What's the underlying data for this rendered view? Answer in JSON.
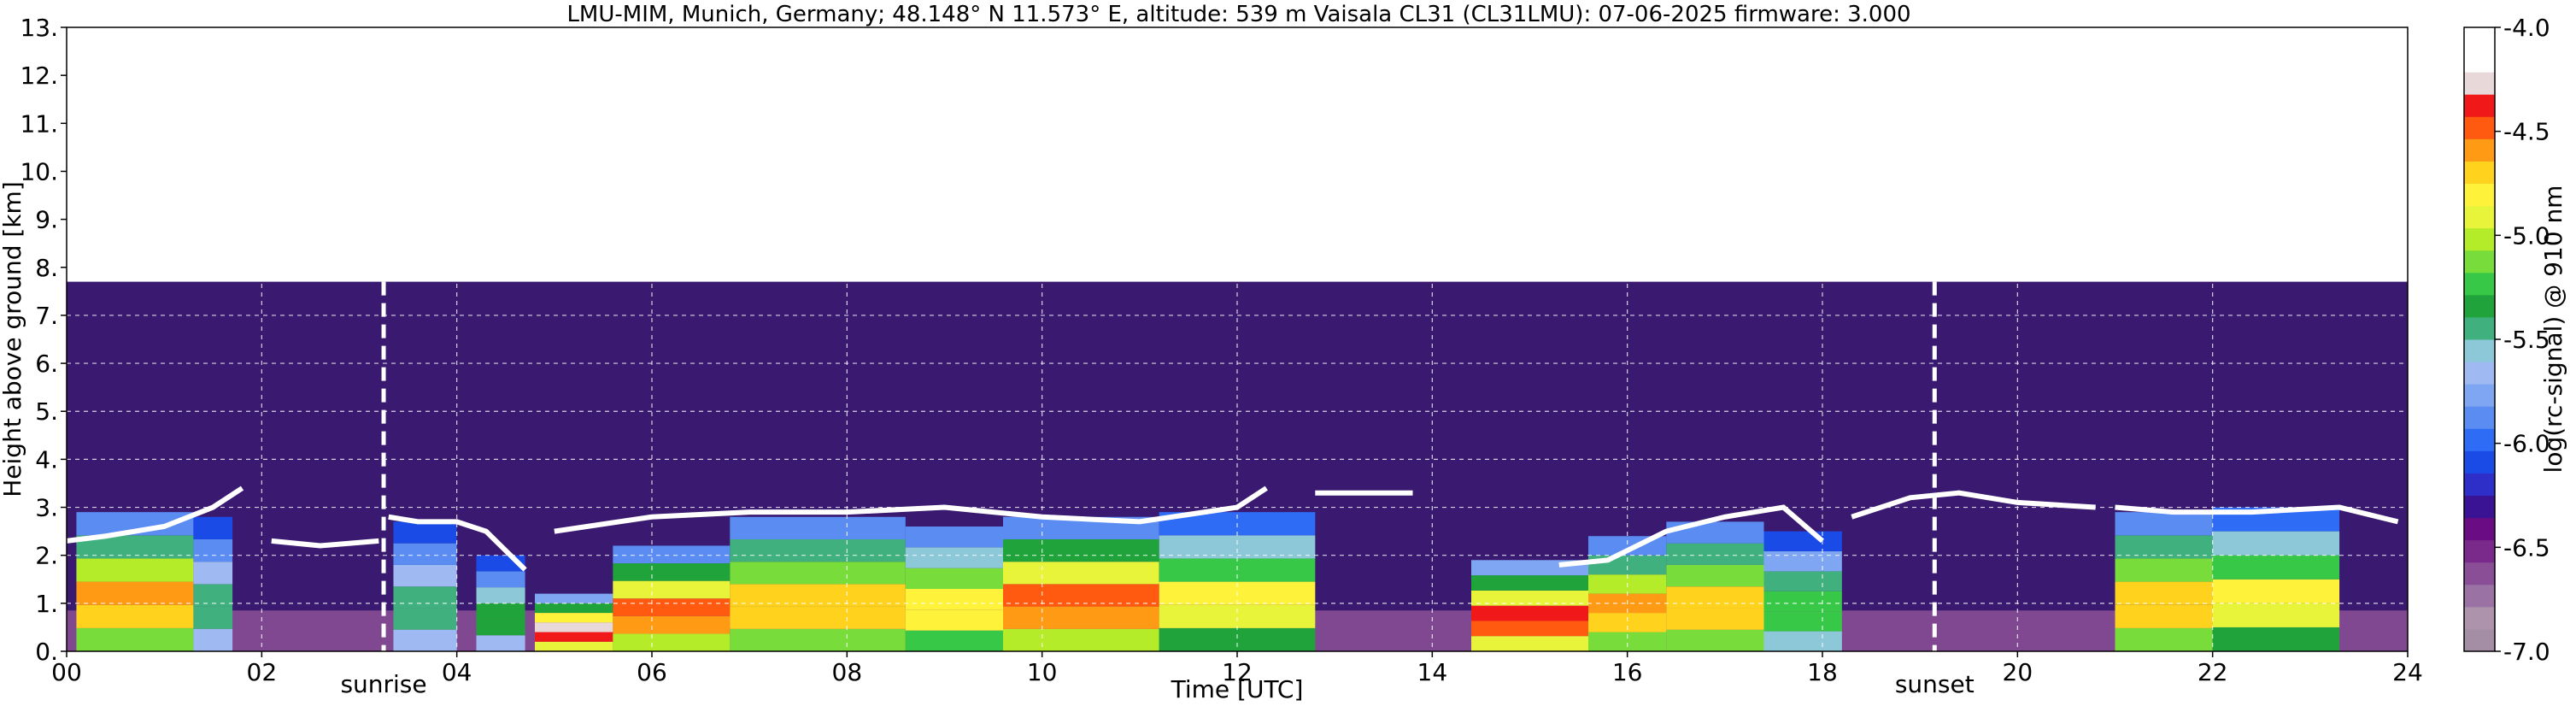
{
  "chart_data": {
    "type": "heatmap",
    "title": "LMU-MIM, Munich, Germany; 48.148° N 11.573° E, altitude: 539 m    Vaisala CL31 (CL31LMU): 07-06-2025    firmware: 3.000",
    "xlabel": "Time [UTC]",
    "ylabel": "Height above ground [km]",
    "xlim": [
      0,
      24
    ],
    "ylim": [
      0,
      13
    ],
    "x_ticks": [
      {
        "value": 0,
        "label": "00"
      },
      {
        "value": 2,
        "label": "02"
      },
      {
        "value": 4,
        "label": "04"
      },
      {
        "value": 6,
        "label": "06"
      },
      {
        "value": 8,
        "label": "08"
      },
      {
        "value": 10,
        "label": "10"
      },
      {
        "value": 12,
        "label": "12"
      },
      {
        "value": 14,
        "label": "14"
      },
      {
        "value": 16,
        "label": "16"
      },
      {
        "value": 18,
        "label": "18"
      },
      {
        "value": 20,
        "label": "20"
      },
      {
        "value": 22,
        "label": "22"
      },
      {
        "value": 24,
        "label": "24"
      }
    ],
    "y_ticks": [
      {
        "value": 0,
        "label": "0."
      },
      {
        "value": 1,
        "label": "1."
      },
      {
        "value": 2,
        "label": "2."
      },
      {
        "value": 3,
        "label": "3."
      },
      {
        "value": 4,
        "label": "4."
      },
      {
        "value": 5,
        "label": "5."
      },
      {
        "value": 6,
        "label": "6."
      },
      {
        "value": 7,
        "label": "7."
      },
      {
        "value": 8,
        "label": "8."
      },
      {
        "value": 9,
        "label": "9."
      },
      {
        "value": 10,
        "label": "10."
      },
      {
        "value": 11,
        "label": "11."
      },
      {
        "value": 12,
        "label": "12."
      },
      {
        "value": 13,
        "label": "13."
      }
    ],
    "grid": true,
    "data_top_height_km": 7.7,
    "sun_events": [
      {
        "label": "sunrise",
        "time": 3.25
      },
      {
        "label": "sunset",
        "time": 19.15
      }
    ],
    "colorbar": {
      "label": "log(rc-signal) @ 910 nm",
      "range": [
        -7.0,
        -4.0
      ],
      "ticks": [
        {
          "value": -4.0,
          "label": "-4.0"
        },
        {
          "value": -4.5,
          "label": "-4.5"
        },
        {
          "value": -5.0,
          "label": "-5.0"
        },
        {
          "value": -5.5,
          "label": "-5.5"
        },
        {
          "value": -6.0,
          "label": "-6.0"
        },
        {
          "value": -6.5,
          "label": "-6.5"
        },
        {
          "value": -7.0,
          "label": "-7.0"
        }
      ],
      "colors": [
        "#a38ea5",
        "#ad93ac",
        "#9a72a3",
        "#8a4e96",
        "#7a2a8a",
        "#6a0d84",
        "#3a1294",
        "#2d2fc8",
        "#1a4be6",
        "#2e6cf6",
        "#5a8cf2",
        "#7fa6f2",
        "#9fbaf2",
        "#8cc8d8",
        "#40b07e",
        "#1fa33a",
        "#38c848",
        "#78dc3a",
        "#b4ec2a",
        "#e8f43a",
        "#fff23a",
        "#ffd21e",
        "#ff9a14",
        "#ff5a10",
        "#f01818",
        "#e8d8da",
        "#ffffff",
        "#ffffff"
      ]
    },
    "cloud_base_layers": [
      {
        "t": [
          0.0,
          0.4,
          1.0,
          1.5,
          1.8
        ],
        "h": [
          2.3,
          2.4,
          2.6,
          3.0,
          3.4
        ]
      },
      {
        "t": [
          2.1,
          2.6,
          3.2
        ],
        "h": [
          2.3,
          2.2,
          2.3
        ]
      },
      {
        "t": [
          3.3,
          3.6,
          4.0,
          4.3,
          4.7
        ],
        "h": [
          2.8,
          2.7,
          2.7,
          2.5,
          1.7
        ]
      },
      {
        "t": [
          5.0,
          6.0,
          7.0,
          8.0,
          9.0,
          10.0,
          11.0,
          12.0,
          12.3
        ],
        "h": [
          2.5,
          2.8,
          2.9,
          2.9,
          3.0,
          2.8,
          2.7,
          3.0,
          3.4
        ]
      },
      {
        "t": [
          12.8,
          13.3,
          13.8
        ],
        "h": [
          3.3,
          3.3,
          3.3
        ]
      },
      {
        "t": [
          15.3,
          15.8,
          16.4,
          17.0,
          17.6,
          18.0
        ],
        "h": [
          1.8,
          1.9,
          2.5,
          2.8,
          3.0,
          2.3
        ]
      },
      {
        "t": [
          18.3,
          18.9,
          19.4,
          20.0,
          20.8
        ],
        "h": [
          2.8,
          3.2,
          3.3,
          3.1,
          3.0
        ]
      },
      {
        "t": [
          21.0,
          21.6,
          22.4,
          23.3,
          23.9
        ],
        "h": [
          3.0,
          2.9,
          2.9,
          3.0,
          2.7
        ]
      }
    ],
    "aerosol_columns": [
      {
        "t0": 0.1,
        "t1": 1.3,
        "top": 2.9,
        "peak": -4.4
      },
      {
        "t0": 1.3,
        "t1": 1.7,
        "top": 2.8,
        "peak": -5.3
      },
      {
        "t0": 3.35,
        "t1": 4.0,
        "top": 2.7,
        "peak": -5.3
      },
      {
        "t0": 4.2,
        "t1": 4.7,
        "top": 2.0,
        "peak": -5.2
      },
      {
        "t0": 4.8,
        "t1": 5.6,
        "top": 1.2,
        "peak": -4.1
      },
      {
        "t0": 5.6,
        "t1": 6.8,
        "top": 2.2,
        "peak": -4.3
      },
      {
        "t0": 6.8,
        "t1": 8.6,
        "top": 2.8,
        "peak": -4.5
      },
      {
        "t0": 8.6,
        "t1": 9.6,
        "top": 2.6,
        "peak": -4.6
      },
      {
        "t0": 9.6,
        "t1": 11.2,
        "top": 2.8,
        "peak": -4.3
      },
      {
        "t0": 11.2,
        "t1": 12.8,
        "top": 2.9,
        "peak": -4.7
      },
      {
        "t0": 14.4,
        "t1": 15.6,
        "top": 1.9,
        "peak": -4.2
      },
      {
        "t0": 15.6,
        "t1": 16.4,
        "top": 2.4,
        "peak": -4.4
      },
      {
        "t0": 16.4,
        "t1": 17.4,
        "top": 2.7,
        "peak": -4.5
      },
      {
        "t0": 17.4,
        "t1": 18.2,
        "top": 2.5,
        "peak": -5.1
      },
      {
        "t0": 21.0,
        "t1": 22.0,
        "top": 2.9,
        "peak": -4.5
      },
      {
        "t0": 22.0,
        "t1": 23.3,
        "top": 3.0,
        "peak": -4.7
      }
    ]
  }
}
